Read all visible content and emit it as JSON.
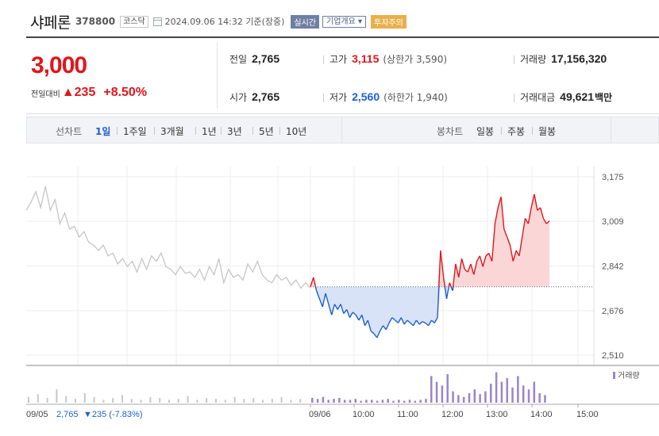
{
  "header": {
    "name": "샤페론",
    "code": "378800",
    "market": "코스닥",
    "timestamp": "2024.09.06 14:32  기준(장중)",
    "live_badge": "실시간",
    "info_badge": "기업개요 ▾",
    "warn_badge": "투자주의"
  },
  "summary": {
    "price": "3,000",
    "change_label": "전일대비",
    "change_value": "▲235",
    "change_pct": "+8.50%",
    "prev_label": "전일",
    "prev_value": "2,765",
    "open_label": "시가",
    "open_value": "2,765",
    "high_label": "고가",
    "high_value": "3,115",
    "high_sub": "(상한가 3,590)",
    "low_label": "저가",
    "low_value": "2,560",
    "low_sub": "(하한가 1,940)",
    "volume_label": "거래량",
    "volume_value": "17,156,320",
    "amount_label": "거래대금",
    "amount_value": "49,621",
    "amount_unit": "백만"
  },
  "tabs": {
    "line_label": "선차트",
    "line_items": [
      "1일",
      "1주일",
      "3개월",
      "1년",
      "3년",
      "5년",
      "10년"
    ],
    "active": "1일",
    "candle_label": "봉차트",
    "candle_items": [
      "일봉",
      "주봉",
      "월봉"
    ]
  },
  "colors": {
    "up": "#e0161c",
    "down": "#1e5fcf",
    "prev_day_line": "#c6c6c6",
    "up_fill": "#fbd6d6",
    "down_fill": "#d8e3f7",
    "volume_today": "#9b84c9",
    "volume_prev": "#c8c8c8"
  },
  "chart_data": {
    "type": "line",
    "y_ticks": [
      "3,175",
      "3,009",
      "2,842",
      "2,676",
      "2,510"
    ],
    "y_tick_values": [
      3175,
      3009,
      2842,
      2676,
      2510
    ],
    "ylim": [
      2510,
      3175
    ],
    "baseline_value": 2765,
    "x_ticks": [
      "09/06",
      "10:00",
      "11:00",
      "12:00",
      "13:00",
      "14:00",
      "15:00"
    ],
    "prev_day_label": "09/05",
    "prev_day_close": "2,765",
    "prev_day_change": "▼235 (-7.83%)",
    "volume_legend": "거래량",
    "grid": true,
    "series": [
      {
        "name": "09/05",
        "segment": "prev",
        "y": [
          3050,
          3080,
          3120,
          3060,
          3140,
          3050,
          3090,
          3000,
          3040,
          2980,
          2990,
          2950,
          2970,
          2930,
          2920,
          2900,
          2920,
          2880,
          2890,
          2850,
          2870,
          2840,
          2860,
          2820,
          2870,
          2830,
          2880,
          2860,
          2890,
          2840,
          2830,
          2810,
          2840,
          2815,
          2820,
          2800,
          2830,
          2790,
          2840,
          2810,
          2870,
          2780,
          2830,
          2800,
          2810,
          2790,
          2850,
          2820,
          2860,
          2810,
          2790,
          2780,
          2810,
          2790,
          2800,
          2770,
          2790,
          2760,
          2780,
          2760
        ]
      },
      {
        "name": "09/06",
        "segment": "today",
        "y": [
          2765,
          2800,
          2750,
          2720,
          2690,
          2740,
          2700,
          2660,
          2700,
          2680,
          2700,
          2665,
          2680,
          2650,
          2670,
          2660,
          2640,
          2660,
          2620,
          2640,
          2600,
          2590,
          2575,
          2600,
          2620,
          2605,
          2630,
          2650,
          2640,
          2630,
          2650,
          2625,
          2640,
          2630,
          2620,
          2640,
          2625,
          2635,
          2630,
          2620,
          2640,
          2630,
          2650,
          2900,
          2800,
          2720,
          2780,
          2750,
          2850,
          2800,
          2870,
          2830,
          2820,
          2850,
          2810,
          2860,
          2880,
          2840,
          2880,
          2890,
          2860,
          3000,
          3060,
          3100,
          2980,
          2950,
          2920,
          2860,
          2900,
          2880,
          2950,
          3020,
          3000,
          3060,
          3110,
          3050,
          3060,
          3020,
          3000,
          3010
        ]
      }
    ],
    "volume": {
      "prev": [
        6,
        9,
        5,
        14,
        7,
        4,
        10,
        6,
        3,
        5,
        8,
        4,
        3,
        6,
        5,
        3,
        4,
        7,
        3,
        5,
        4,
        3,
        6,
        4,
        5,
        3,
        4,
        6,
        3,
        4
      ],
      "today": [
        5,
        4,
        6,
        3,
        4,
        5,
        3,
        3,
        4,
        2,
        3,
        3,
        2,
        3,
        4,
        2,
        3,
        2,
        3,
        2,
        3,
        4,
        28,
        22,
        18,
        30,
        12,
        8,
        6,
        10,
        14,
        9,
        12,
        20,
        32,
        22,
        26,
        16,
        28,
        18,
        14,
        22,
        10,
        8
      ]
    }
  }
}
